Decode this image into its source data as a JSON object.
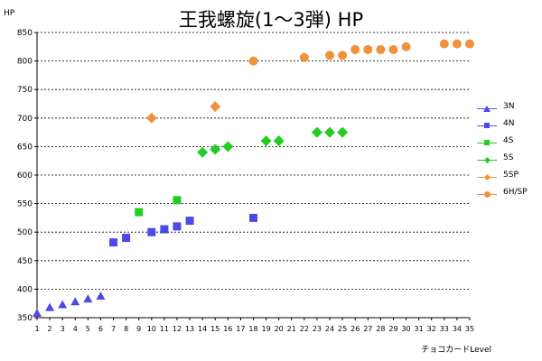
{
  "chart_data": {
    "type": "scatter",
    "title": "王我螺旋(1～3弾) HP",
    "ylabel": "HP",
    "xlabel": "チョコカードLevel",
    "xlim": [
      1,
      35
    ],
    "ylim": [
      350,
      850
    ],
    "yticks": [
      350,
      400,
      450,
      500,
      550,
      600,
      650,
      700,
      750,
      800,
      850
    ],
    "xticks": [
      1,
      2,
      3,
      4,
      5,
      6,
      7,
      8,
      9,
      10,
      11,
      12,
      13,
      14,
      15,
      16,
      17,
      18,
      19,
      20,
      21,
      22,
      23,
      24,
      25,
      26,
      27,
      28,
      29,
      30,
      31,
      32,
      33,
      34,
      35
    ],
    "grid": "horizontal-dashed",
    "legend_position": "right",
    "series": [
      {
        "name": "3N",
        "marker": "triangle",
        "color": "#4a4ae8",
        "line_color": "#5555ee",
        "x": [
          1,
          2,
          3,
          4,
          5,
          6
        ],
        "y": [
          358,
          368,
          373,
          378,
          383,
          388
        ]
      },
      {
        "name": "4N",
        "marker": "square",
        "color": "#4a4ae8",
        "line_color": "#5555ee",
        "x": [
          7,
          8,
          10,
          11,
          12,
          13,
          18
        ],
        "y": [
          482,
          490,
          500,
          505,
          510,
          520,
          525
        ]
      },
      {
        "name": "4S",
        "marker": "square",
        "color": "#22cc22",
        "line_color": "#22cc22",
        "x": [
          9,
          12
        ],
        "y": [
          535,
          556
        ]
      },
      {
        "name": "5S",
        "marker": "diamond",
        "color": "#22cc22",
        "line_color": "#22cc22",
        "x": [
          14,
          15,
          16,
          19,
          20,
          23,
          24,
          25
        ],
        "y": [
          640,
          645,
          650,
          660,
          660,
          675,
          675,
          675
        ]
      },
      {
        "name": "5SP",
        "marker": "diamond",
        "color": "#f0923a",
        "line_color": "#f0923a",
        "x": [
          10,
          15
        ],
        "y": [
          700,
          720
        ]
      },
      {
        "name": "6H/SP",
        "marker": "circle",
        "color": "#f0923a",
        "line_color": "#f0923a",
        "x": [
          18,
          22,
          24,
          25,
          26,
          27,
          28,
          29,
          30,
          33,
          34,
          35
        ],
        "y": [
          800,
          806,
          810,
          810,
          820,
          820,
          820,
          820,
          825,
          830,
          830,
          830
        ]
      }
    ]
  }
}
